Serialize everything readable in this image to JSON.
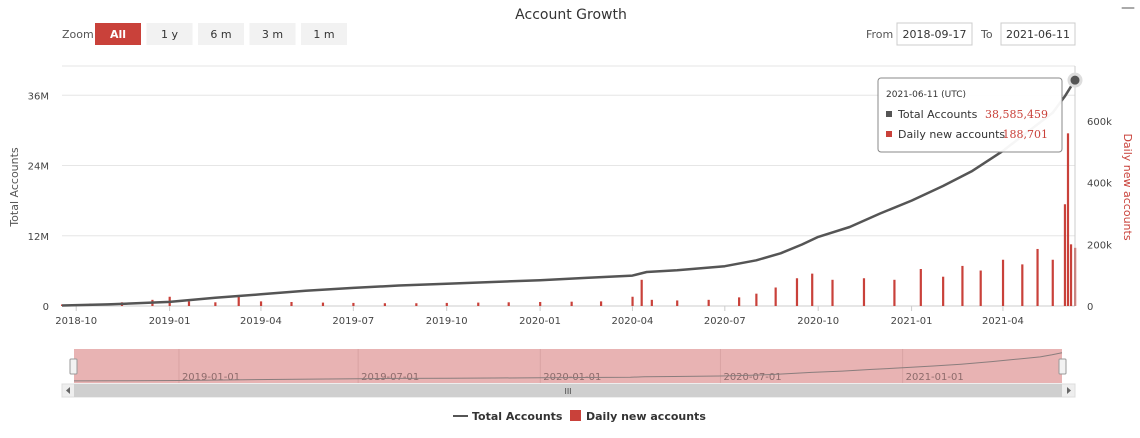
{
  "chart_data": {
    "type": "line",
    "title": "Account Growth",
    "zoom": {
      "label": "Zoom",
      "buttons": [
        "All",
        "1 y",
        "6 m",
        "3 m",
        "1 m"
      ],
      "selected": "All"
    },
    "range": {
      "from_label": "From",
      "from_value": "2018-09-17",
      "to_label": "To",
      "to_value": "2021-06-11"
    },
    "y_left": {
      "label": "Total Accounts",
      "ticks": [
        "0",
        "12M",
        "24M",
        "36M"
      ],
      "tick_values": [
        0,
        12000000,
        24000000,
        36000000
      ],
      "max": 41000000
    },
    "y_right": {
      "label": "Daily new accounts",
      "ticks": [
        "0",
        "200k",
        "400k",
        "600k"
      ],
      "tick_values": [
        0,
        200000,
        400000,
        600000
      ],
      "max": 600000
    },
    "x_axis": {
      "start": "2018-09-17",
      "end": "2021-06-11",
      "ticks": [
        "2018-10",
        "2019-01",
        "2019-04",
        "2019-07",
        "2019-10",
        "2020-01",
        "2020-04",
        "2020-07",
        "2020-10",
        "2021-01",
        "2021-04"
      ]
    },
    "series": [
      {
        "name": "Total Accounts",
        "kind": "line",
        "color": "#555555",
        "points": [
          [
            "2018-09-17",
            80000
          ],
          [
            "2018-11-01",
            280000
          ],
          [
            "2019-01-01",
            700000
          ],
          [
            "2019-02-15",
            1400000
          ],
          [
            "2019-04-01",
            2000000
          ],
          [
            "2019-05-15",
            2600000
          ],
          [
            "2019-07-01",
            3100000
          ],
          [
            "2019-08-15",
            3500000
          ],
          [
            "2019-10-01",
            3800000
          ],
          [
            "2019-11-15",
            4100000
          ],
          [
            "2020-01-01",
            4400000
          ],
          [
            "2020-02-15",
            4800000
          ],
          [
            "2020-04-01",
            5200000
          ],
          [
            "2020-04-15",
            5800000
          ],
          [
            "2020-05-15",
            6100000
          ],
          [
            "2020-07-01",
            6800000
          ],
          [
            "2020-08-01",
            7800000
          ],
          [
            "2020-08-25",
            9000000
          ],
          [
            "2020-09-15",
            10500000
          ],
          [
            "2020-10-01",
            11800000
          ],
          [
            "2020-11-01",
            13500000
          ],
          [
            "2020-12-01",
            15800000
          ],
          [
            "2021-01-01",
            18000000
          ],
          [
            "2021-02-01",
            20500000
          ],
          [
            "2021-03-01",
            23000000
          ],
          [
            "2021-04-01",
            26500000
          ],
          [
            "2021-05-01",
            30500000
          ],
          [
            "2021-05-20",
            33000000
          ],
          [
            "2021-06-01",
            35800000
          ],
          [
            "2021-06-11",
            38585459
          ]
        ]
      },
      {
        "name": "Daily new accounts",
        "kind": "column",
        "color": "#c9413a",
        "points": [
          [
            "2018-09-17",
            5000
          ],
          [
            "2018-10-15",
            8000
          ],
          [
            "2018-11-15",
            12000
          ],
          [
            "2018-12-15",
            20000
          ],
          [
            "2019-01-01",
            30000
          ],
          [
            "2019-01-20",
            15000
          ],
          [
            "2019-02-15",
            12000
          ],
          [
            "2019-03-10",
            30000
          ],
          [
            "2019-04-01",
            15000
          ],
          [
            "2019-05-01",
            13000
          ],
          [
            "2019-06-01",
            11000
          ],
          [
            "2019-07-01",
            10000
          ],
          [
            "2019-08-01",
            9000
          ],
          [
            "2019-09-01",
            9000
          ],
          [
            "2019-10-01",
            10000
          ],
          [
            "2019-11-01",
            11000
          ],
          [
            "2019-12-01",
            12000
          ],
          [
            "2020-01-01",
            13000
          ],
          [
            "2020-02-01",
            14000
          ],
          [
            "2020-03-01",
            15000
          ],
          [
            "2020-04-01",
            30000
          ],
          [
            "2020-04-10",
            85000
          ],
          [
            "2020-04-20",
            20000
          ],
          [
            "2020-05-15",
            18000
          ],
          [
            "2020-06-15",
            20000
          ],
          [
            "2020-07-15",
            28000
          ],
          [
            "2020-08-01",
            40000
          ],
          [
            "2020-08-20",
            60000
          ],
          [
            "2020-09-10",
            90000
          ],
          [
            "2020-09-25",
            105000
          ],
          [
            "2020-10-15",
            85000
          ],
          [
            "2020-11-15",
            90000
          ],
          [
            "2020-12-15",
            85000
          ],
          [
            "2021-01-10",
            120000
          ],
          [
            "2021-02-01",
            95000
          ],
          [
            "2021-02-20",
            130000
          ],
          [
            "2021-03-10",
            115000
          ],
          [
            "2021-04-01",
            150000
          ],
          [
            "2021-04-20",
            135000
          ],
          [
            "2021-05-05",
            185000
          ],
          [
            "2021-05-20",
            150000
          ],
          [
            "2021-06-01",
            330000
          ],
          [
            "2021-06-04",
            560000
          ],
          [
            "2021-06-07",
            200000
          ],
          [
            "2021-06-11",
            188701
          ]
        ]
      }
    ],
    "tooltip": {
      "date": "2021-06-11 (UTC)",
      "rows": [
        {
          "label": "Total Accounts",
          "value": "38,585,459",
          "color": "#555555"
        },
        {
          "label": "Daily new accounts",
          "value": "188,701",
          "color": "#c9413a"
        }
      ]
    },
    "navigator": {
      "labels": [
        "2019-01-01",
        "2019-07-01",
        "2020-01-01",
        "2020-07-01",
        "2021-01-01"
      ],
      "scrollbar_glyph": "III"
    },
    "legend": {
      "position": "bottom-center",
      "items": [
        "Total Accounts",
        "Daily new accounts"
      ]
    },
    "grid": true,
    "menu_glyph": "—"
  }
}
